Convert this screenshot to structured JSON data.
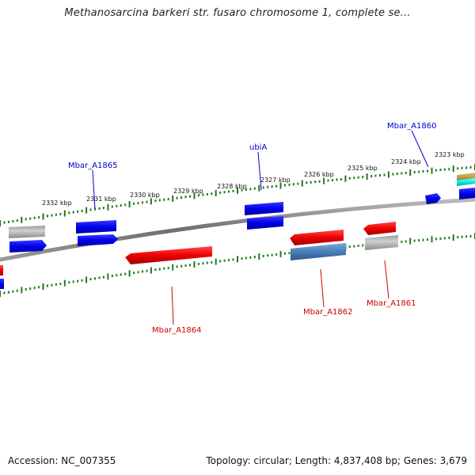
{
  "title": "Methanosarcina barkeri str. fusaro chromosome 1, complete se...",
  "footer": {
    "accession": "Accession: NC_007355",
    "topology": "Topology: circular; Length: 4,837,408 bp; Genes: 3,679"
  },
  "colors": {
    "backbone": "#7f7f7f",
    "tick": "#1e7a1e",
    "forward_gene": "#0000ee",
    "reverse_gene": "#ee0000",
    "forward_label": "#0000cc",
    "reverse_label": "#cc0000",
    "gray_feature": "#b8b8b8",
    "steel_feature": "#4a7fb8"
  },
  "tick_labels": [
    {
      "label": "2332 kbp"
    },
    {
      "label": "2331 kbp"
    },
    {
      "label": "2330 kbp"
    },
    {
      "label": "2329 kbp"
    },
    {
      "label": "2328 kbp"
    },
    {
      "label": "2327 kbp"
    },
    {
      "label": "2326 kbp"
    },
    {
      "label": "2325 kbp"
    },
    {
      "label": "2324 kbp"
    },
    {
      "label": "2323 kbp"
    }
  ],
  "gene_labels": [
    {
      "name": "Mbar_A1865",
      "strand": "forward"
    },
    {
      "name": "ubiA",
      "strand": "forward"
    },
    {
      "name": "Mbar_A1860",
      "strand": "forward"
    },
    {
      "name": "Mbar_A1864",
      "strand": "reverse"
    },
    {
      "name": "Mbar_A1862",
      "strand": "reverse"
    },
    {
      "name": "Mbar_A1861",
      "strand": "reverse"
    }
  ]
}
